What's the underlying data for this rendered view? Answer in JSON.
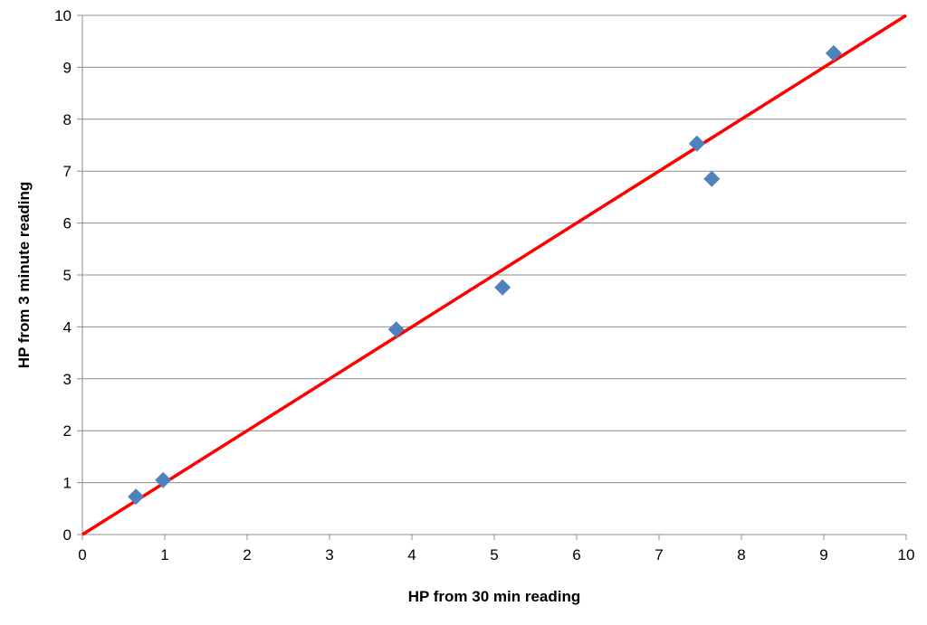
{
  "chart_data": {
    "type": "scatter",
    "title": "",
    "xlabel": "HP from 30 min reading",
    "ylabel": "HP from 3 minute reading",
    "xlim": [
      0,
      10
    ],
    "ylim": [
      0,
      10
    ],
    "xticks": [
      "0",
      "1",
      "2",
      "3",
      "4",
      "5",
      "6",
      "7",
      "8",
      "9",
      "10"
    ],
    "yticks": [
      "0",
      "1",
      "2",
      "3",
      "4",
      "5",
      "6",
      "7",
      "8",
      "9",
      "10"
    ],
    "grid": "horizontal",
    "legend": "none",
    "series": [
      {
        "marker": "diamond",
        "color": "#4F81BD",
        "points": [
          {
            "x": 0.65,
            "y": 0.73
          },
          {
            "x": 0.98,
            "y": 1.05
          },
          {
            "x": 3.81,
            "y": 3.95
          },
          {
            "x": 5.1,
            "y": 4.76
          },
          {
            "x": 7.46,
            "y": 7.53
          },
          {
            "x": 7.64,
            "y": 6.85
          },
          {
            "x": 9.12,
            "y": 9.27
          }
        ]
      }
    ],
    "reference_line": {
      "color": "#FF0000",
      "from": {
        "x": 0,
        "y": 0
      },
      "to": {
        "x": 10,
        "y": 10
      }
    }
  }
}
